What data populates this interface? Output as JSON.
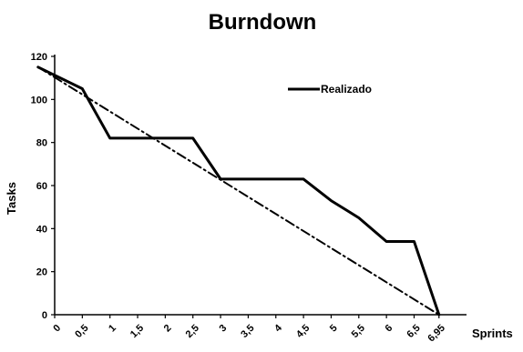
{
  "chart_data": {
    "type": "line",
    "title": "Burndown",
    "xlabel": "Sprints",
    "ylabel": "Tasks",
    "ylim": [
      0,
      120
    ],
    "y_ticks": [
      "0",
      "20",
      "40",
      "60",
      "80",
      "100",
      "120"
    ],
    "xlim": [
      0,
      7.25
    ],
    "x_ticks": [
      "0",
      "0,5",
      "1",
      "1,5",
      "2",
      "2,5",
      "3",
      "3,5",
      "4",
      "4,5",
      "5",
      "5,5",
      "6",
      "6,5",
      "6,95"
    ],
    "x_tick_values": [
      0,
      0.5,
      1,
      1.5,
      2,
      2.5,
      3,
      3.5,
      4,
      4.5,
      5,
      5.5,
      6,
      6.5,
      6.95
    ],
    "grid": false,
    "legend": {
      "position": "top-right",
      "entries": [
        "Realizado"
      ]
    },
    "series": [
      {
        "name": "Realizado",
        "style": "solid",
        "color": "#000000",
        "x": [
          -0.3,
          0.5,
          1,
          1.5,
          2,
          2.5,
          3,
          3.5,
          4,
          4.5,
          5,
          5.5,
          6,
          6.5,
          6.95
        ],
        "y": [
          115,
          105,
          82,
          82,
          82,
          82,
          63,
          63,
          63,
          63,
          53,
          45,
          34,
          34,
          0
        ]
      },
      {
        "style": "dash-dot",
        "color": "#000000",
        "x": [
          -0.3,
          6.95
        ],
        "y": [
          115,
          0
        ]
      }
    ]
  }
}
